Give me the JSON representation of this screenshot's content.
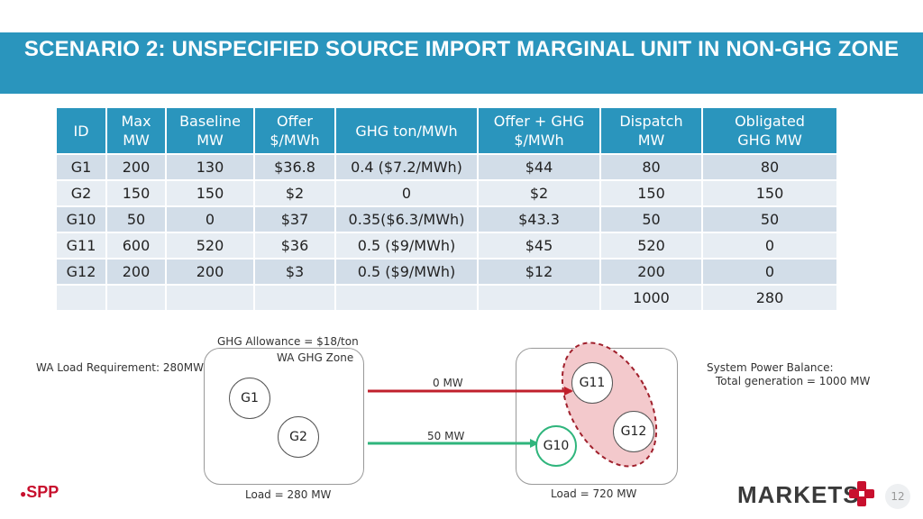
{
  "title": "SCENARIO 2: UNSPECIFIED SOURCE IMPORT MARGINAL UNIT IN NON-GHG ZONE",
  "table": {
    "headers": [
      [
        "ID",
        ""
      ],
      [
        "Max",
        "MW"
      ],
      [
        "Baseline",
        "MW"
      ],
      [
        "Offer",
        "$/MWh"
      ],
      [
        "GHG ton/MWh",
        ""
      ],
      [
        "Offer + GHG",
        "$/MWh"
      ],
      [
        "Dispatch",
        "MW"
      ],
      [
        "Obligated",
        "GHG MW"
      ]
    ],
    "rows": [
      [
        "G1",
        "200",
        "130",
        "$36.8",
        "0.4 ($7.2/MWh)",
        "$44",
        "80",
        "80"
      ],
      [
        "G2",
        "150",
        "150",
        "$2",
        "0",
        "$2",
        "150",
        "150"
      ],
      [
        "G10",
        "50",
        "0",
        "$37",
        "0.35($6.3/MWh)",
        "$43.3",
        "50",
        "50"
      ],
      [
        "G11",
        "600",
        "520",
        "$36",
        "0.5 ($9/MWh)",
        "$45",
        "520",
        "0"
      ],
      [
        "G12",
        "200",
        "200",
        "$3",
        "0.5 ($9/MWh)",
        "$12",
        "200",
        "0"
      ],
      [
        "",
        "",
        "",
        "",
        "",
        "",
        "1000",
        "280"
      ]
    ]
  },
  "diagram": {
    "ghg_allowance": "GHG Allowance = $18/ton",
    "wa_zone_label": "WA GHG Zone",
    "wa_load_req": "WA Load Requirement: 280MW",
    "flow_top": "0 MW",
    "flow_bottom": "50 MW",
    "system_balance_1": "System Power Balance:",
    "system_balance_2": "Total generation = 1000 MW",
    "load_left": "Load = 280 MW",
    "load_right": "Load = 720 MW",
    "gens": {
      "g1": "G1",
      "g2": "G2",
      "g10": "G10",
      "g11": "G11",
      "g12": "G12"
    },
    "colors": {
      "import_arrow": "#c0202c",
      "export_arrow": "#2fb57c",
      "marginal_fill": "#f3c9cc",
      "banner": "#2a95bd"
    }
  },
  "footer": {
    "spp_logo": "SPP",
    "markets_logo": "MARKETS",
    "page_number": "12"
  }
}
